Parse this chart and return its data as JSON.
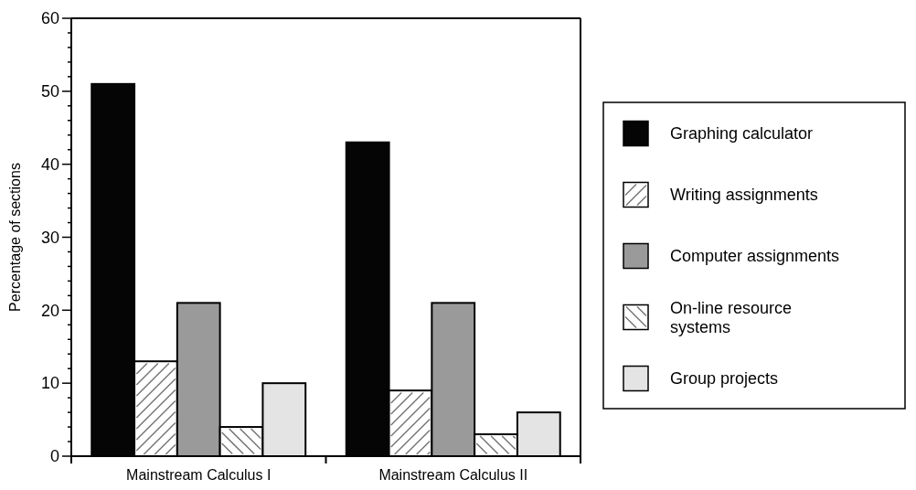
{
  "chart_data": {
    "type": "bar",
    "ylabel": "Percentage of sections",
    "categories": [
      "Mainstream Calculus I",
      "Mainstream Calculus II"
    ],
    "series": [
      {
        "name": "Graphing calculator",
        "color": "#050505",
        "values": [
          51,
          43
        ]
      },
      {
        "name": "Writing assignments",
        "color": "#ffffff",
        "values": [
          13,
          9
        ]
      },
      {
        "name": "Computer assignments",
        "color": "#9a9a9a",
        "values": [
          21,
          21
        ]
      },
      {
        "name": "On-line resource systems",
        "color": "#ffffff",
        "values": [
          4,
          3
        ]
      },
      {
        "name": "Group projects",
        "color": "#e4e4e4",
        "values": [
          10,
          6
        ]
      }
    ],
    "ylim": [
      0,
      60
    ],
    "yticks": [
      0,
      {
        "value": 2,
        "label": null
      },
      {
        "value": 4,
        "label": null
      },
      {
        "value": 6,
        "label": null
      },
      {
        "value": 8,
        "label": null
      },
      10,
      {
        "value": 12,
        "label": null
      },
      {
        "value": 14,
        "label": null
      },
      {
        "value": 16,
        "label": null
      },
      {
        "value": 18,
        "label": null
      },
      20,
      {
        "value": 22,
        "label": null
      },
      {
        "value": 24,
        "label": null
      },
      {
        "value": 26,
        "label": null
      },
      {
        "value": 28,
        "label": null
      },
      30,
      {
        "value": 32,
        "label": null
      },
      {
        "value": 34,
        "label": null
      },
      {
        "value": 36,
        "label": null
      },
      {
        "value": 38,
        "label": null
      },
      40,
      {
        "value": 42,
        "label": null
      },
      {
        "value": 44,
        "label": null
      },
      {
        "value": 46,
        "label": null
      },
      {
        "value": 48,
        "label": null
      },
      50,
      {
        "value": 52,
        "label": null
      },
      {
        "value": 54,
        "label": null
      },
      {
        "value": 56,
        "label": null
      },
      {
        "value": 58,
        "label": null
      },
      60
    ],
    "grid": false,
    "legend": "right"
  }
}
